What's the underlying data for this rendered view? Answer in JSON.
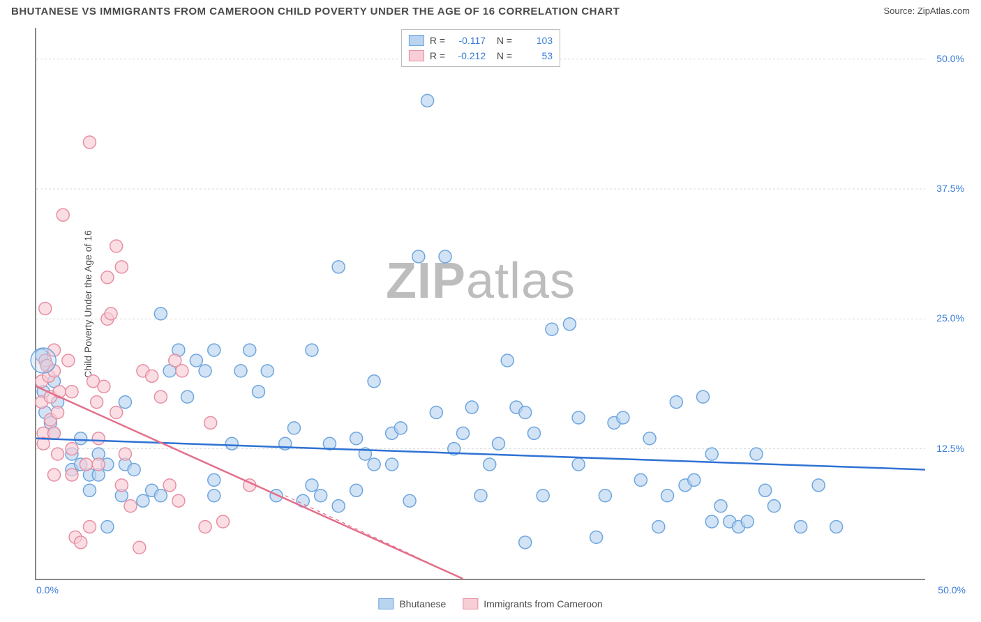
{
  "header": {
    "title": "BHUTANESE VS IMMIGRANTS FROM CAMEROON CHILD POVERTY UNDER THE AGE OF 16 CORRELATION CHART",
    "source": "Source: ZipAtlas.com"
  },
  "watermark": {
    "bold": "ZIP",
    "rest": "atlas"
  },
  "chart": {
    "type": "scatter",
    "ylabel": "Child Poverty Under the Age of 16",
    "background_color": "#ffffff",
    "grid_color": "#d8d8d8",
    "axis_color": "#888888",
    "xlim": [
      0,
      50
    ],
    "ylim": [
      0,
      53
    ],
    "yticks": [
      12.5,
      25.0,
      37.5,
      50.0
    ],
    "ytick_labels": [
      "12.5%",
      "25.0%",
      "37.5%",
      "50.0%"
    ],
    "xaxis_left_label": "0.0%",
    "xaxis_right_label": "50.0%",
    "series": [
      {
        "key": "bhutanese",
        "label": "Bhutanese",
        "point_fill": "#b9d4ef",
        "point_stroke": "#6ea6de",
        "line_color": "#2f72d4",
        "line_width": 2.5,
        "marker_radius": 9,
        "fill_opacity": 0.65,
        "R": "-0.117",
        "N": "103",
        "trend": {
          "x1": 0,
          "y1": 13.5,
          "x2": 50,
          "y2": 10.5
        },
        "trend_dash": null,
        "points": [
          [
            0.5,
            21
          ],
          [
            0.6,
            20.5
          ],
          [
            0.4,
            18
          ],
          [
            0.5,
            16
          ],
          [
            1,
            19
          ],
          [
            0.8,
            15
          ],
          [
            1,
            14
          ],
          [
            1.2,
            17
          ],
          [
            0.3,
            21.5
          ],
          [
            2,
            12
          ],
          [
            2,
            10.5
          ],
          [
            2.5,
            11
          ],
          [
            2.5,
            13.5
          ],
          [
            3,
            10
          ],
          [
            3,
            8.5
          ],
          [
            3.5,
            12
          ],
          [
            3.5,
            10
          ],
          [
            4,
            11
          ],
          [
            4,
            5
          ],
          [
            4.8,
            8
          ],
          [
            5,
            11
          ],
          [
            5,
            17
          ],
          [
            5.5,
            10.5
          ],
          [
            6,
            7.5
          ],
          [
            6.5,
            8.5
          ],
          [
            7,
            8
          ],
          [
            7,
            25.5
          ],
          [
            7.5,
            20
          ],
          [
            8,
            22
          ],
          [
            8.5,
            17.5
          ],
          [
            9,
            21
          ],
          [
            9.5,
            20
          ],
          [
            10,
            22
          ],
          [
            10,
            9.5
          ],
          [
            10,
            8
          ],
          [
            11,
            13
          ],
          [
            11.5,
            20
          ],
          [
            12,
            22
          ],
          [
            12.5,
            18
          ],
          [
            13,
            20
          ],
          [
            13.5,
            8
          ],
          [
            14,
            13
          ],
          [
            14.5,
            14.5
          ],
          [
            15,
            7.5
          ],
          [
            15.5,
            9
          ],
          [
            15.5,
            22
          ],
          [
            16,
            8
          ],
          [
            16.5,
            13
          ],
          [
            17,
            7
          ],
          [
            17,
            30
          ],
          [
            18,
            13.5
          ],
          [
            18,
            8.5
          ],
          [
            18.5,
            12
          ],
          [
            19,
            11
          ],
          [
            19,
            19
          ],
          [
            20,
            14
          ],
          [
            20,
            11
          ],
          [
            20.5,
            14.5
          ],
          [
            21,
            7.5
          ],
          [
            21.5,
            31
          ],
          [
            22,
            46
          ],
          [
            22.5,
            16
          ],
          [
            23,
            31
          ],
          [
            23.5,
            12.5
          ],
          [
            24,
            14
          ],
          [
            24.5,
            16.5
          ],
          [
            25,
            8
          ],
          [
            25.5,
            11
          ],
          [
            26,
            13
          ],
          [
            26.5,
            21
          ],
          [
            27,
            16.5
          ],
          [
            27.5,
            16
          ],
          [
            27.5,
            3.5
          ],
          [
            28,
            14
          ],
          [
            28.5,
            8
          ],
          [
            29,
            24
          ],
          [
            30,
            24.5
          ],
          [
            30.5,
            15.5
          ],
          [
            30.5,
            11
          ],
          [
            31.5,
            4
          ],
          [
            32,
            8
          ],
          [
            32.5,
            15
          ],
          [
            33,
            15.5
          ],
          [
            34,
            9.5
          ],
          [
            34.5,
            13.5
          ],
          [
            35,
            5
          ],
          [
            35.5,
            8
          ],
          [
            36,
            17
          ],
          [
            36.5,
            9
          ],
          [
            37,
            9.5
          ],
          [
            37.5,
            17.5
          ],
          [
            38,
            12
          ],
          [
            38,
            5.5
          ],
          [
            38.5,
            7
          ],
          [
            39,
            5.5
          ],
          [
            39.5,
            5
          ],
          [
            40,
            5.5
          ],
          [
            40.5,
            12
          ],
          [
            41,
            8.5
          ],
          [
            41.5,
            7
          ],
          [
            43,
            5
          ],
          [
            44,
            9
          ],
          [
            45,
            5
          ]
        ]
      },
      {
        "key": "cameroon",
        "label": "Immigrants from Cameroon",
        "point_fill": "#f7cdd6",
        "point_stroke": "#e78fa3",
        "line_color": "#e36f8a",
        "line_width": 2.5,
        "marker_radius": 9,
        "fill_opacity": 0.65,
        "R": "-0.212",
        "N": "53",
        "trend": {
          "x1": 0,
          "y1": 18.5,
          "x2": 24,
          "y2": 0
        },
        "trend_extra_dash": {
          "x1": 14,
          "y1": 8,
          "x2": 24,
          "y2": 0
        },
        "points": [
          [
            0.3,
            19
          ],
          [
            0.3,
            17
          ],
          [
            0.4,
            14
          ],
          [
            0.4,
            13
          ],
          [
            0.5,
            26
          ],
          [
            0.5,
            21
          ],
          [
            0.6,
            20.5
          ],
          [
            0.7,
            19.5
          ],
          [
            0.8,
            17.5
          ],
          [
            0.8,
            15.3
          ],
          [
            1,
            22
          ],
          [
            1,
            20
          ],
          [
            1.2,
            16
          ],
          [
            1,
            14
          ],
          [
            1,
            10
          ],
          [
            1.2,
            12
          ],
          [
            1.3,
            18
          ],
          [
            1.5,
            35
          ],
          [
            1.8,
            21
          ],
          [
            2,
            18
          ],
          [
            2,
            12.5
          ],
          [
            2,
            10
          ],
          [
            2.2,
            4
          ],
          [
            2.5,
            3.5
          ],
          [
            2.8,
            11
          ],
          [
            3,
            5
          ],
          [
            3,
            42
          ],
          [
            3.2,
            19
          ],
          [
            3.4,
            17
          ],
          [
            3.5,
            13.5
          ],
          [
            3.5,
            11
          ],
          [
            3.8,
            18.5
          ],
          [
            4,
            29
          ],
          [
            4,
            25
          ],
          [
            4.2,
            25.5
          ],
          [
            4.5,
            32
          ],
          [
            4.5,
            16
          ],
          [
            4.8,
            9
          ],
          [
            4.8,
            30
          ],
          [
            5,
            12
          ],
          [
            5.3,
            7
          ],
          [
            5.8,
            3
          ],
          [
            6,
            20
          ],
          [
            6.5,
            19.5
          ],
          [
            7,
            17.5
          ],
          [
            7.5,
            9
          ],
          [
            7.8,
            21
          ],
          [
            8,
            7.5
          ],
          [
            8.2,
            20
          ],
          [
            9.5,
            5
          ],
          [
            9.8,
            15
          ],
          [
            10.5,
            5.5
          ],
          [
            12,
            9
          ]
        ]
      }
    ]
  }
}
